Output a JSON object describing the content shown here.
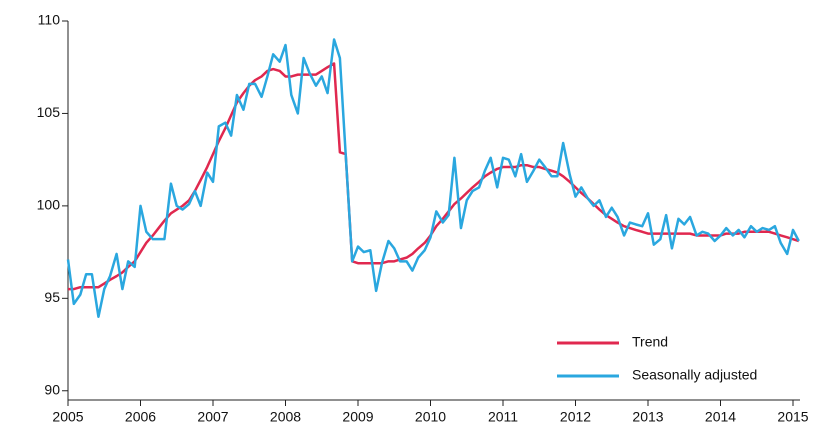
{
  "chart_data": {
    "type": "line",
    "x": [
      2005,
      2005.08,
      2005.17,
      2005.25,
      2005.33,
      2005.42,
      2005.5,
      2005.58,
      2005.67,
      2005.75,
      2005.83,
      2005.92,
      2006,
      2006.08,
      2006.17,
      2006.25,
      2006.33,
      2006.42,
      2006.5,
      2006.58,
      2006.67,
      2006.75,
      2006.83,
      2006.92,
      2007,
      2007.08,
      2007.17,
      2007.25,
      2007.33,
      2007.42,
      2007.5,
      2007.58,
      2007.67,
      2007.75,
      2007.83,
      2007.92,
      2008,
      2008.08,
      2008.17,
      2008.25,
      2008.33,
      2008.42,
      2008.5,
      2008.58,
      2008.67,
      2008.75,
      2008.83,
      2008.92,
      2009,
      2009.08,
      2009.17,
      2009.25,
      2009.33,
      2009.42,
      2009.5,
      2009.58,
      2009.67,
      2009.75,
      2009.83,
      2009.92,
      2010,
      2010.08,
      2010.17,
      2010.25,
      2010.33,
      2010.42,
      2010.5,
      2010.58,
      2010.67,
      2010.75,
      2010.83,
      2010.92,
      2011,
      2011.08,
      2011.17,
      2011.25,
      2011.33,
      2011.42,
      2011.5,
      2011.58,
      2011.67,
      2011.75,
      2011.83,
      2011.92,
      2012,
      2012.08,
      2012.17,
      2012.25,
      2012.33,
      2012.42,
      2012.5,
      2012.58,
      2012.67,
      2012.75,
      2012.83,
      2012.92,
      2013,
      2013.08,
      2013.17,
      2013.25,
      2013.33,
      2013.42,
      2013.5,
      2013.58,
      2013.67,
      2013.75,
      2013.83,
      2013.92,
      2014,
      2014.08,
      2014.17,
      2014.25,
      2014.33,
      2014.42,
      2014.5,
      2014.58,
      2014.67,
      2014.75,
      2014.83,
      2014.92,
      2015,
      2015.08
    ],
    "series": [
      {
        "name": "Trend",
        "color": "#e0284f",
        "values": [
          95.5,
          95.5,
          95.6,
          95.6,
          95.6,
          95.6,
          95.8,
          96.0,
          96.2,
          96.4,
          96.7,
          97.0,
          97.5,
          98.0,
          98.4,
          98.8,
          99.2,
          99.6,
          99.8,
          100.0,
          100.3,
          100.8,
          101.4,
          102.1,
          102.8,
          103.5,
          104.2,
          104.9,
          105.6,
          106.1,
          106.5,
          106.8,
          107.0,
          107.3,
          107.4,
          107.3,
          107.0,
          107.0,
          107.1,
          107.1,
          107.1,
          107.1,
          107.3,
          107.5,
          107.7,
          102.9,
          102.8,
          97.0,
          96.9,
          96.9,
          96.9,
          96.9,
          96.9,
          97.0,
          97.0,
          97.1,
          97.2,
          97.4,
          97.7,
          98.0,
          98.4,
          98.9,
          99.3,
          99.7,
          100.1,
          100.4,
          100.7,
          101.0,
          101.3,
          101.6,
          101.8,
          102.0,
          102.1,
          102.1,
          102.1,
          102.2,
          102.2,
          102.1,
          102.1,
          102.0,
          101.9,
          101.8,
          101.6,
          101.3,
          101.0,
          100.7,
          100.4,
          100.1,
          99.8,
          99.5,
          99.3,
          99.1,
          98.9,
          98.8,
          98.7,
          98.6,
          98.5,
          98.5,
          98.5,
          98.5,
          98.5,
          98.5,
          98.5,
          98.5,
          98.4,
          98.4,
          98.4,
          98.4,
          98.4,
          98.5,
          98.5,
          98.5,
          98.6,
          98.6,
          98.6,
          98.6,
          98.6,
          98.5,
          98.4,
          98.3,
          98.2,
          98.1
        ]
      },
      {
        "name": "Seasonally adjusted",
        "color": "#2aa7df",
        "values": [
          97.1,
          94.7,
          95.2,
          96.3,
          96.3,
          94.0,
          95.5,
          96.2,
          97.4,
          95.5,
          97.0,
          96.7,
          100.0,
          98.6,
          98.2,
          98.2,
          98.2,
          101.2,
          100.0,
          99.8,
          100.1,
          100.8,
          100.0,
          101.8,
          101.3,
          104.3,
          104.5,
          103.8,
          106.0,
          105.2,
          106.6,
          106.6,
          105.9,
          107.0,
          108.2,
          107.8,
          108.7,
          106.0,
          105.0,
          108.0,
          107.2,
          106.5,
          107.0,
          106.1,
          109.0,
          108.0,
          102.8,
          97.0,
          97.8,
          97.5,
          97.6,
          95.4,
          96.9,
          98.1,
          97.7,
          97.0,
          97.0,
          96.5,
          97.2,
          97.6,
          98.3,
          99.7,
          99.1,
          99.5,
          102.6,
          98.8,
          100.3,
          100.8,
          101.0,
          101.9,
          102.6,
          101.0,
          102.6,
          102.5,
          101.6,
          102.8,
          101.3,
          101.9,
          102.5,
          102.1,
          101.6,
          101.6,
          103.4,
          101.7,
          100.5,
          101.0,
          100.4,
          100.0,
          100.3,
          99.4,
          99.9,
          99.4,
          98.4,
          99.1,
          99.0,
          98.9,
          99.6,
          97.9,
          98.2,
          99.5,
          97.7,
          99.3,
          99.0,
          99.4,
          98.4,
          98.6,
          98.5,
          98.1,
          98.4,
          98.8,
          98.4,
          98.7,
          98.3,
          98.9,
          98.6,
          98.8,
          98.7,
          98.9,
          98.0,
          97.4,
          98.7,
          98.1
        ]
      }
    ],
    "xlim": [
      2005,
      2015.1
    ],
    "xticks": [
      2005,
      2006,
      2007,
      2008,
      2009,
      2010,
      2011,
      2012,
      2013,
      2014,
      2015
    ],
    "ylim": [
      89.5,
      110
    ],
    "yticks": [
      90,
      95,
      100,
      105,
      110
    ],
    "grid": false,
    "legend": "lower right"
  }
}
